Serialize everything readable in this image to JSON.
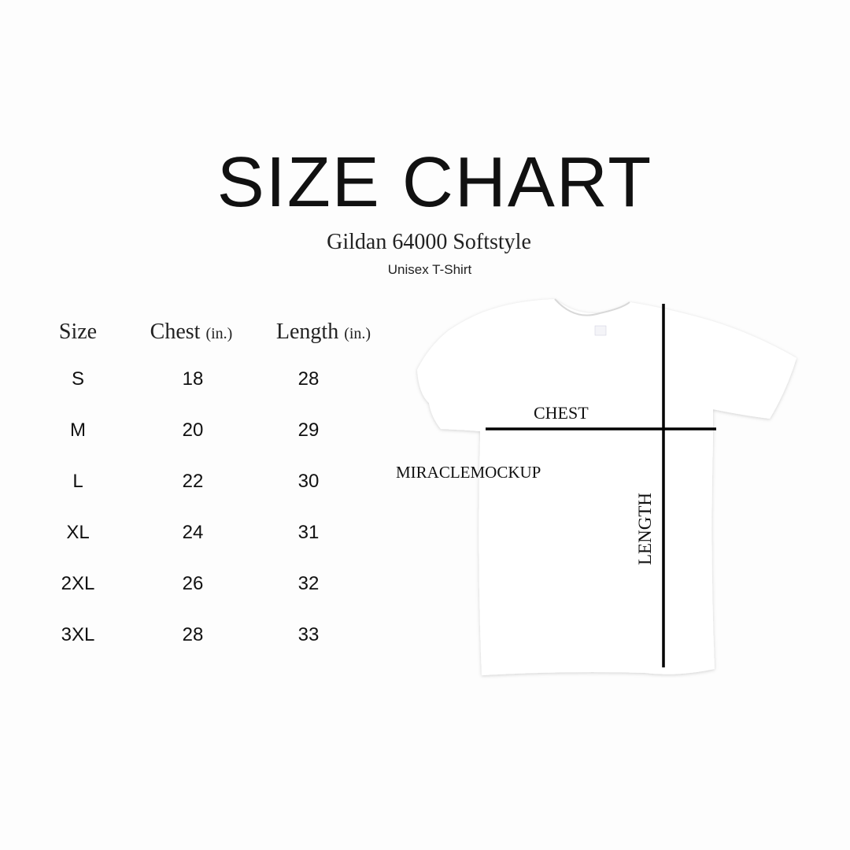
{
  "header": {
    "title": "SIZE CHART",
    "subtitle": "Gildan 64000 Softstyle",
    "product": "Unisex T-Shirt"
  },
  "table": {
    "columns": [
      {
        "label": "Size",
        "unit": ""
      },
      {
        "label": "Chest",
        "unit": "(in.)"
      },
      {
        "label": "Length",
        "unit": "(in.)"
      }
    ],
    "rows": [
      [
        "S",
        "18",
        "28"
      ],
      [
        "M",
        "20",
        "29"
      ],
      [
        "L",
        "22",
        "30"
      ],
      [
        "XL",
        "24",
        "31"
      ],
      [
        "2XL",
        "26",
        "32"
      ],
      [
        "3XL",
        "28",
        "33"
      ]
    ]
  },
  "diagram": {
    "chest_label": "CHEST",
    "length_label": "LENGTH",
    "watermark": "MIRACLEMOCKUP",
    "shirt_color": "#ffffff",
    "line_color": "#000000"
  }
}
